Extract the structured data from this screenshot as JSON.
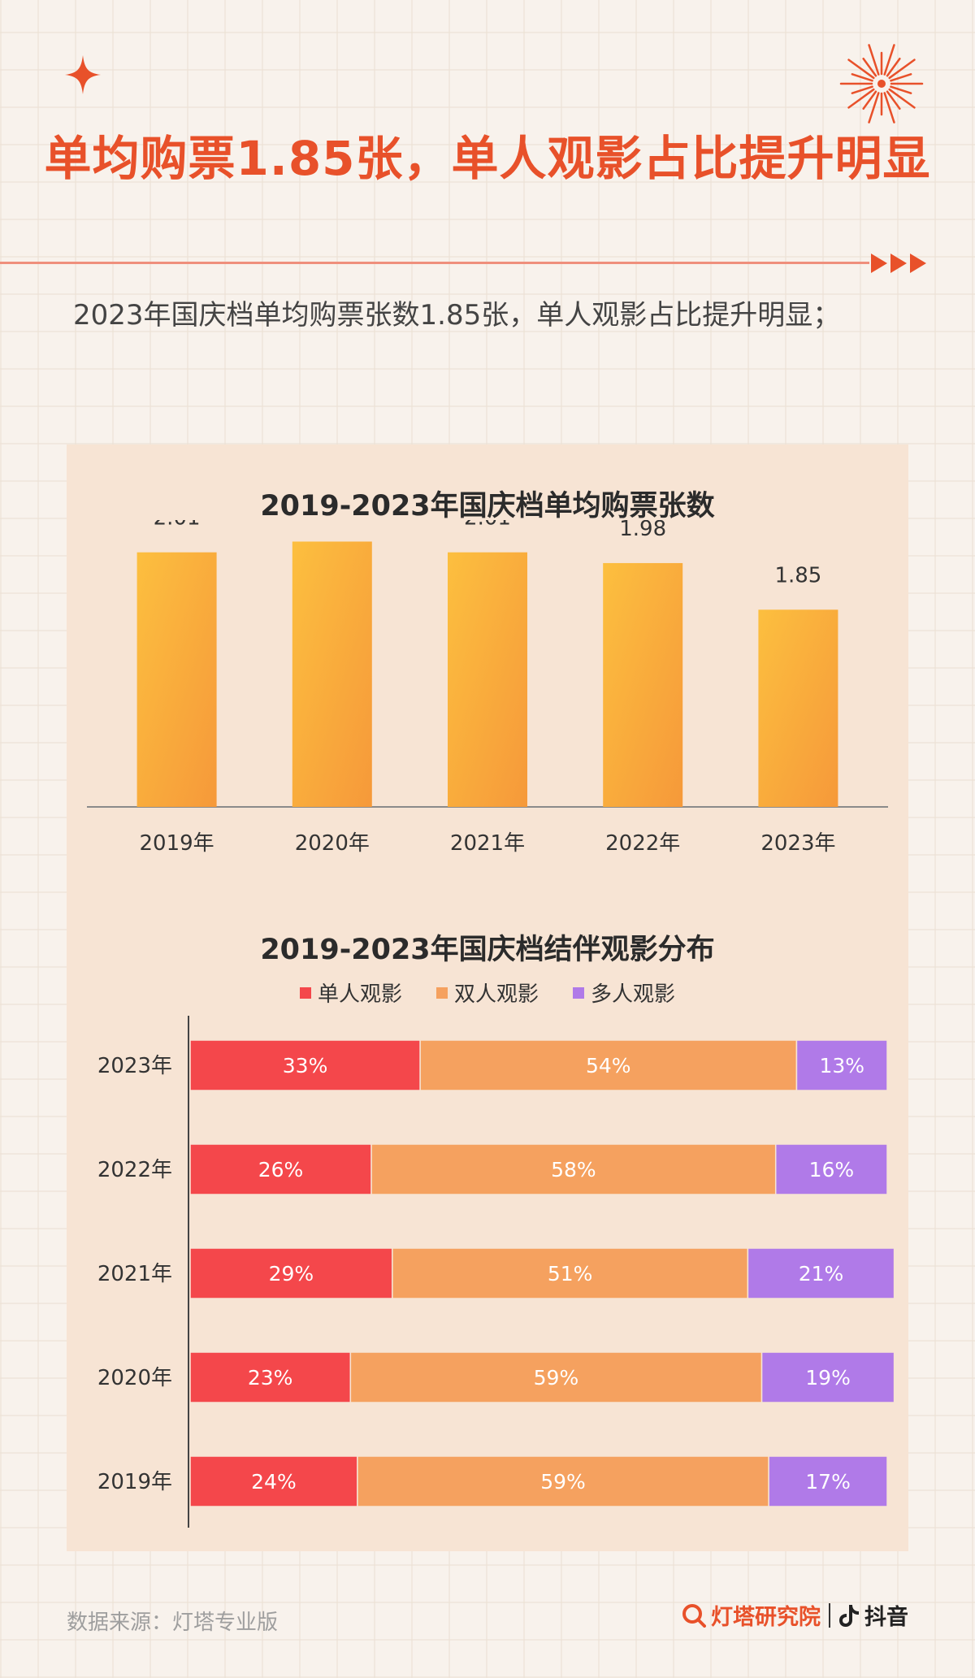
{
  "headline": "单均购票1.85张，单人观影占比提升明显",
  "subtitle": "2023年国庆档单均购票张数1.85张，单人观影占比提升明显；",
  "decor": {
    "accent": "#e8512a",
    "sparkle_icon": "four-point-star",
    "firework_icon": "firework-burst",
    "arrow_icon": "triple-chevron-right"
  },
  "chart_data": [
    {
      "type": "bar",
      "title": "2019-2023年国庆档单均购票张数",
      "categories": [
        "2019年",
        "2020年",
        "2021年",
        "2022年",
        "2023年"
      ],
      "values": [
        2.01,
        2.04,
        2.01,
        1.98,
        1.85
      ],
      "value_labels": [
        "2.01",
        "2.04",
        "2.01",
        "1.98",
        "1.85"
      ],
      "color": "#f9b33a",
      "xlabel": "",
      "ylabel": "",
      "ylim": [
        1.3,
        2.1
      ],
      "grid": false,
      "legend": "none"
    },
    {
      "type": "bar",
      "stacked": "horizontal-percent",
      "title": "2019-2023年国庆档结伴观影分布",
      "categories": [
        "2023年",
        "2022年",
        "2021年",
        "2020年",
        "2019年"
      ],
      "series": [
        {
          "name": "单人观影",
          "color": "#f4474b",
          "values": [
            33,
            26,
            29,
            23,
            24
          ],
          "labels": [
            "33%",
            "26%",
            "29%",
            "23%",
            "24%"
          ]
        },
        {
          "name": "双人观影",
          "color": "#f5a15f",
          "values": [
            54,
            58,
            51,
            59,
            59
          ],
          "labels": [
            "54%",
            "58%",
            "51%",
            "59%",
            "59%"
          ]
        },
        {
          "name": "多人观影",
          "color": "#b07ae8",
          "values": [
            13,
            16,
            21,
            19,
            17
          ],
          "labels": [
            "13%",
            "16%",
            "21%",
            "19%",
            "17%"
          ]
        }
      ],
      "xlim": [
        0,
        100
      ],
      "grid": false,
      "legend": "top-center"
    }
  ],
  "footer": {
    "source": "数据来源：灯塔专业版",
    "brand_primary": "灯塔研究院",
    "brand_secondary": "抖音",
    "brand_primary_icon": "lighthouse-search-icon",
    "brand_secondary_icon": "tiktok-note-icon"
  }
}
